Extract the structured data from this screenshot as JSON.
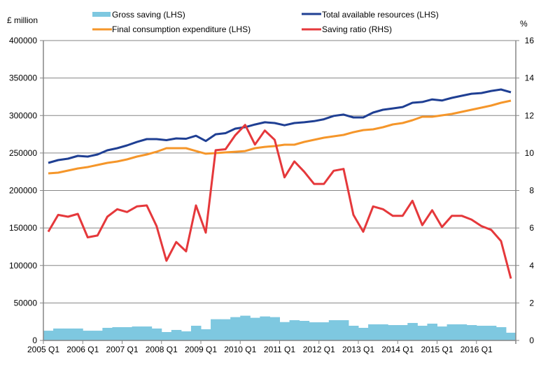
{
  "chart_data": {
    "type": "bar+line",
    "title": "",
    "ylabel_left": "£ million",
    "ylabel_right": "%",
    "ylim_left": [
      0,
      400000
    ],
    "ylim_right": [
      0,
      16
    ],
    "yticks_left": [
      "0",
      "50000",
      "100000",
      "150000",
      "200000",
      "250000",
      "300000",
      "350000",
      "400000"
    ],
    "yticks_right": [
      "0",
      "2",
      "4",
      "6",
      "8",
      "10",
      "12",
      "14",
      "16"
    ],
    "xtick_labels": [
      "2005 Q1",
      "2006 Q1",
      "2007 Q1",
      "2008 Q1",
      "2009 Q1",
      "2010 Q1",
      "2011 Q1",
      "2012 Q1",
      "2013 Q1",
      "2014 Q1",
      "2015 Q1",
      "2016 Q1"
    ],
    "grid": "horizontal",
    "legend_position": "top",
    "categories": [
      "2005 Q1",
      "2005 Q2",
      "2005 Q3",
      "2005 Q4",
      "2006 Q1",
      "2006 Q2",
      "2006 Q3",
      "2006 Q4",
      "2007 Q1",
      "2007 Q2",
      "2007 Q3",
      "2007 Q4",
      "2008 Q1",
      "2008 Q2",
      "2008 Q3",
      "2008 Q4",
      "2009 Q1",
      "2009 Q2",
      "2009 Q3",
      "2009 Q4",
      "2010 Q1",
      "2010 Q2",
      "2010 Q3",
      "2010 Q4",
      "2011 Q1",
      "2011 Q2",
      "2011 Q3",
      "2011 Q4",
      "2012 Q1",
      "2012 Q2",
      "2012 Q3",
      "2012 Q4",
      "2013 Q1",
      "2013 Q2",
      "2013 Q3",
      "2013 Q4",
      "2014 Q1",
      "2014 Q2",
      "2014 Q3",
      "2014 Q4",
      "2015 Q1",
      "2015 Q2",
      "2015 Q3",
      "2015 Q4",
      "2016 Q1",
      "2016 Q2",
      "2016 Q3",
      "2016 Q4"
    ],
    "series": [
      {
        "name": "Gross saving (LHS)",
        "type": "bar",
        "axis": "left",
        "color": "#7ec8e0",
        "values": [
          13000,
          15900,
          15900,
          15900,
          13000,
          13000,
          16800,
          17700,
          17700,
          18600,
          18600,
          15900,
          11200,
          14000,
          12100,
          19600,
          14900,
          28300,
          28300,
          31100,
          33000,
          30200,
          32000,
          31100,
          24500,
          27000,
          26100,
          24200,
          24200,
          27000,
          27000,
          19600,
          16800,
          21500,
          21500,
          20500,
          20500,
          23300,
          19600,
          22400,
          18600,
          21500,
          21500,
          20500,
          19600,
          19600,
          17700,
          10300
        ]
      },
      {
        "name": "Total available resources (LHS)",
        "type": "line",
        "axis": "left",
        "color": "#1f3f93",
        "values": [
          236800,
          240600,
          242400,
          246200,
          245200,
          248000,
          253600,
          256400,
          260100,
          264700,
          268500,
          268500,
          267100,
          269500,
          269000,
          273000,
          266000,
          275000,
          276500,
          282500,
          284500,
          288000,
          291000,
          290000,
          287000,
          290000,
          291000,
          292500,
          295000,
          299500,
          301300,
          297400,
          297400,
          304000,
          307700,
          309500,
          311300,
          317000,
          318000,
          321500,
          320000,
          323500,
          326300,
          329000,
          330000,
          332800,
          334700,
          331000
        ]
      },
      {
        "name": "Final consumption expenditure (LHS)",
        "type": "line",
        "axis": "left",
        "color": "#f5962a",
        "values": [
          222800,
          223800,
          226600,
          229400,
          231200,
          234000,
          236800,
          238700,
          241500,
          245200,
          248000,
          251700,
          256400,
          256400,
          256400,
          252600,
          249000,
          249900,
          250800,
          251700,
          252600,
          256400,
          258200,
          259200,
          261100,
          261100,
          264800,
          267600,
          270400,
          272300,
          274100,
          277800,
          280600,
          281600,
          284400,
          288100,
          290000,
          293700,
          298400,
          298400,
          300200,
          302100,
          304900,
          307700,
          310500,
          313300,
          317000,
          319800
        ]
      },
      {
        "name": "Saving ratio (RHS)",
        "type": "line",
        "axis": "right",
        "color": "#e5383b",
        "values": [
          5.8,
          6.7,
          6.6,
          6.75,
          5.5,
          5.6,
          6.6,
          7.0,
          6.85,
          7.15,
          7.2,
          6.1,
          4.25,
          5.25,
          4.75,
          7.2,
          5.75,
          10.15,
          10.2,
          10.95,
          11.5,
          10.45,
          11.2,
          10.7,
          8.7,
          9.55,
          9.0,
          8.35,
          8.35,
          9.05,
          9.15,
          6.7,
          5.8,
          7.15,
          7.0,
          6.65,
          6.65,
          7.45,
          6.15,
          6.95,
          6.05,
          6.65,
          6.65,
          6.45,
          6.1,
          5.9,
          5.3,
          3.3
        ]
      }
    ]
  }
}
